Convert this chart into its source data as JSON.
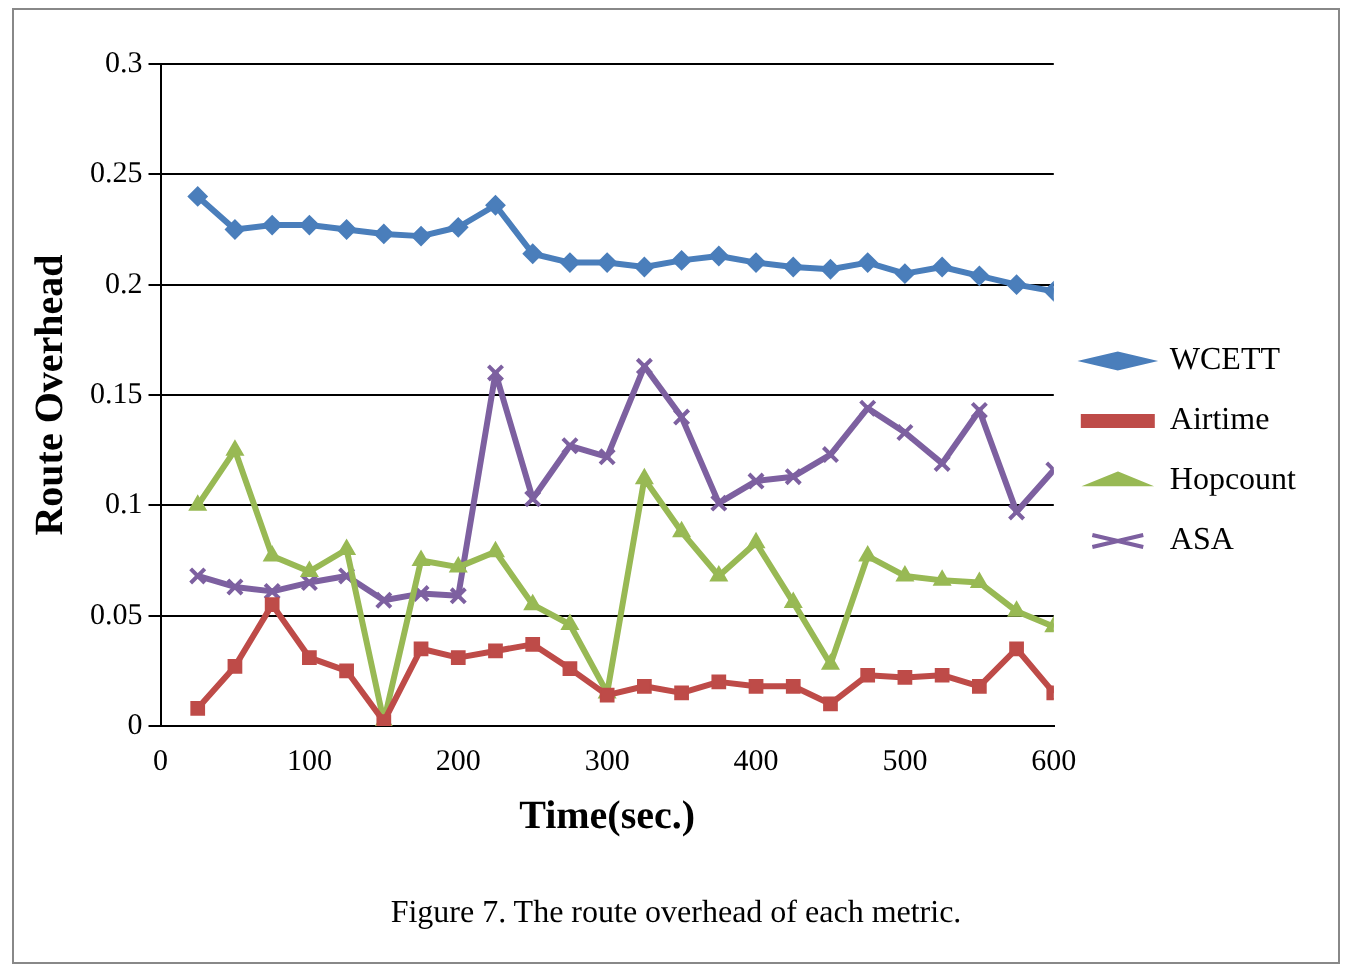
{
  "chart_data": {
    "type": "line",
    "xlabel": "Time(sec.)",
    "ylabel": "Route Overhead",
    "x": [
      25,
      50,
      75,
      100,
      125,
      150,
      175,
      200,
      225,
      250,
      275,
      300,
      325,
      350,
      375,
      400,
      425,
      450,
      475,
      500,
      525,
      550,
      575,
      600
    ],
    "xlim": [
      0,
      600
    ],
    "xticks": [
      0,
      100,
      200,
      300,
      400,
      500,
      600
    ],
    "ylim": [
      0,
      0.3
    ],
    "yticks": [
      0,
      0.05,
      0.1,
      0.15,
      0.2,
      0.25,
      0.3
    ],
    "grid": "y",
    "legend": "right",
    "line_style": "solid",
    "series": [
      {
        "name": "WCETT",
        "color": "#4a7ebb",
        "marker": "diamond",
        "values": [
          0.24,
          0.225,
          0.227,
          0.227,
          0.225,
          0.223,
          0.222,
          0.226,
          0.236,
          0.214,
          0.21,
          0.21,
          0.208,
          0.211,
          0.213,
          0.21,
          0.208,
          0.207,
          0.21,
          0.205,
          0.208,
          0.204,
          0.2,
          0.197
        ]
      },
      {
        "name": "Airtime",
        "color": "#be4b48",
        "marker": "square",
        "values": [
          0.008,
          0.027,
          0.055,
          0.031,
          0.025,
          0.002,
          0.035,
          0.031,
          0.034,
          0.037,
          0.026,
          0.014,
          0.018,
          0.015,
          0.02,
          0.018,
          0.018,
          0.01,
          0.023,
          0.022,
          0.023,
          0.018,
          0.035,
          0.015
        ]
      },
      {
        "name": "Hopcount",
        "color": "#98b954",
        "marker": "triangle",
        "values": [
          0.1,
          0.125,
          0.077,
          0.07,
          0.08,
          0.002,
          0.075,
          0.072,
          0.079,
          0.055,
          0.046,
          0.015,
          0.112,
          0.088,
          0.068,
          0.083,
          0.056,
          0.028,
          0.077,
          0.068,
          0.066,
          0.065,
          0.052,
          0.045
        ]
      },
      {
        "name": "ASA",
        "color": "#7d60a0",
        "marker": "cross",
        "values": [
          0.068,
          0.063,
          0.061,
          0.065,
          0.068,
          0.057,
          0.06,
          0.059,
          0.16,
          0.103,
          0.127,
          0.122,
          0.163,
          0.14,
          0.101,
          0.111,
          0.113,
          0.123,
          0.144,
          0.133,
          0.119,
          0.143,
          0.097,
          0.116
        ]
      }
    ],
    "annotations": [
      "Figure 7. The route overhead of each metric."
    ]
  }
}
